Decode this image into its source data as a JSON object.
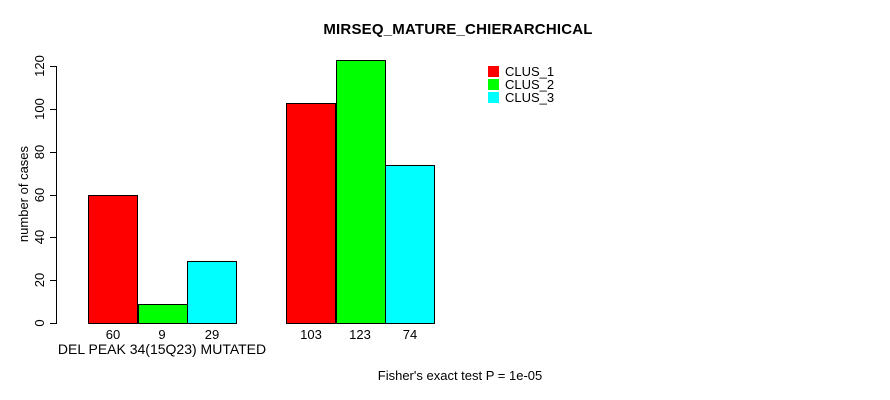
{
  "chart_data": {
    "type": "bar",
    "title": "MIRSEQ_MATURE_CHIERARCHICAL",
    "ylabel": "number of cases",
    "xlabel": "",
    "ylim": [
      0,
      120
    ],
    "yticks": [
      0,
      20,
      40,
      60,
      80,
      100,
      120
    ],
    "grid": false,
    "legend_position": "top-right-inside",
    "bar_border_color": "#000000",
    "categories": [
      "DEL PEAK 34(15Q23) MUTATED",
      ""
    ],
    "series": [
      {
        "name": "CLUS_1",
        "color": "#ff0000",
        "values": [
          60,
          103
        ]
      },
      {
        "name": "CLUS_2",
        "color": "#00ff00",
        "values": [
          9,
          123
        ]
      },
      {
        "name": "CLUS_3",
        "color": "#00ffff",
        "values": [
          29,
          74
        ]
      }
    ],
    "bar_value_labels": [
      [
        "60",
        "9",
        "29"
      ],
      [
        "103",
        "123",
        "74"
      ]
    ],
    "annotation": "Fisher's exact test P = 1e-05"
  }
}
